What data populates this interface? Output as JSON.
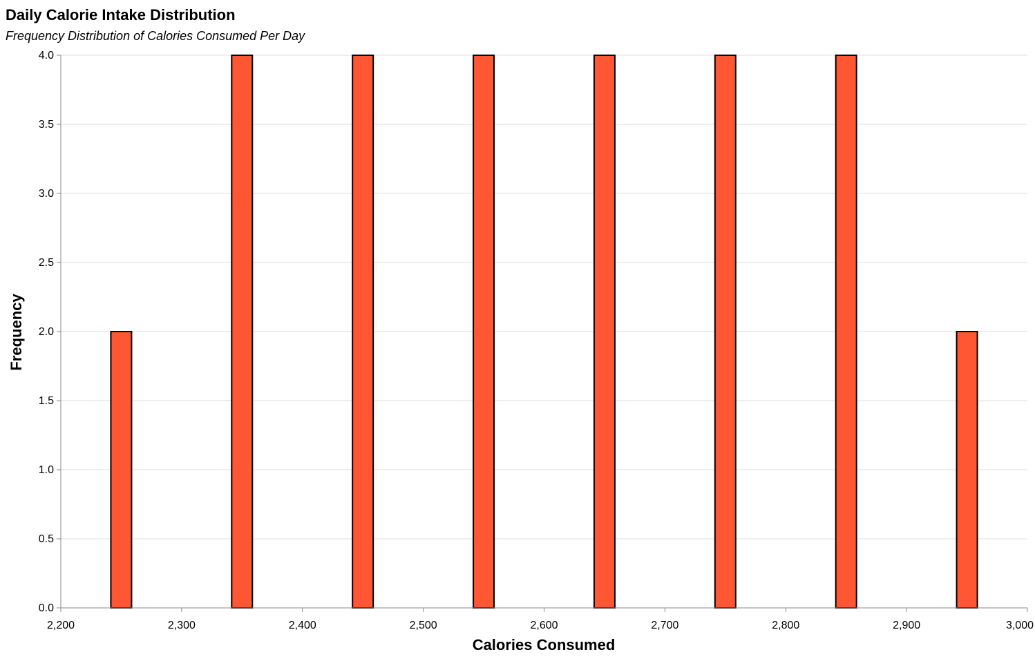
{
  "chart_data": {
    "type": "bar",
    "title": "Daily Calorie Intake Distribution",
    "subtitle": "Frequency Distribution of Calories Consumed Per Day",
    "xlabel": "Calories Consumed",
    "ylabel": "Frequency",
    "bin_width": 100,
    "bins": [
      {
        "x0": 2200,
        "x1": 2300,
        "count": 2
      },
      {
        "x0": 2300,
        "x1": 2400,
        "count": 4
      },
      {
        "x0": 2400,
        "x1": 2500,
        "count": 4
      },
      {
        "x0": 2500,
        "x1": 2600,
        "count": 4
      },
      {
        "x0": 2600,
        "x1": 2700,
        "count": 4
      },
      {
        "x0": 2700,
        "x1": 2800,
        "count": 4
      },
      {
        "x0": 2800,
        "x1": 2900,
        "count": 4
      },
      {
        "x0": 2900,
        "x1": 3000,
        "count": 2
      }
    ],
    "xlim": [
      2200,
      3000
    ],
    "ylim": [
      0,
      4
    ],
    "x_ticks": [
      2200,
      2300,
      2400,
      2500,
      2600,
      2700,
      2800,
      2900,
      3000
    ],
    "x_tick_labels": [
      "2,200",
      "2,300",
      "2,400",
      "2,500",
      "2,600",
      "2,700",
      "2,800",
      "2,900",
      "3,000"
    ],
    "y_ticks": [
      0,
      0.5,
      1,
      1.5,
      2,
      2.5,
      3,
      3.5,
      4
    ],
    "y_tick_labels": [
      "0.0",
      "0.5",
      "1.0",
      "1.5",
      "2.0",
      "2.5",
      "3.0",
      "3.5",
      "4.0"
    ],
    "grid": true,
    "bar_color": "#ff5733",
    "bar_stroke": "#000000"
  }
}
